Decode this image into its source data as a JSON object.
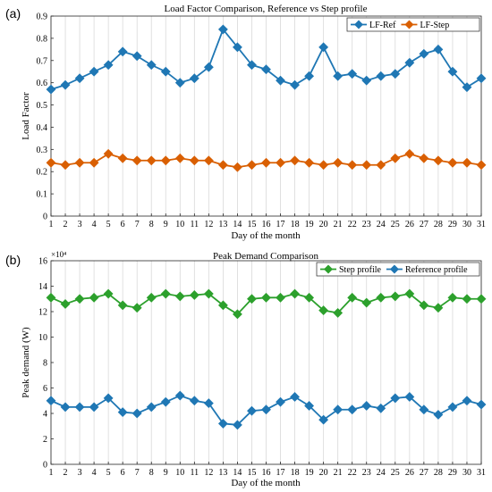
{
  "chart_data": [
    {
      "panel": "(a)",
      "type": "line",
      "title": "Load Factor Comparison, Reference vs Step profile",
      "xlabel": "Day of the month",
      "ylabel": "Load Factor",
      "xlim": [
        1,
        31
      ],
      "ylim": [
        0,
        0.9
      ],
      "yticks": [
        0,
        0.1,
        0.2,
        0.3,
        0.4,
        0.5,
        0.6,
        0.7,
        0.8,
        0.9
      ],
      "y_exponent": "",
      "grid": "vertical",
      "legend_position": "top-right",
      "x": [
        1,
        2,
        3,
        4,
        5,
        6,
        7,
        8,
        9,
        10,
        11,
        12,
        13,
        14,
        15,
        16,
        17,
        18,
        19,
        20,
        21,
        22,
        23,
        24,
        25,
        26,
        27,
        28,
        29,
        30,
        31
      ],
      "series": [
        {
          "name": "LF-Ref",
          "color": "#1f77b4",
          "marker": "diamond",
          "values": [
            0.57,
            0.59,
            0.62,
            0.65,
            0.68,
            0.74,
            0.72,
            0.68,
            0.65,
            0.6,
            0.62,
            0.67,
            0.84,
            0.76,
            0.68,
            0.66,
            0.61,
            0.59,
            0.63,
            0.76,
            0.63,
            0.64,
            0.61,
            0.63,
            0.64,
            0.69,
            0.73,
            0.75,
            0.65,
            0.58,
            0.62
          ]
        },
        {
          "name": "LF-Step",
          "color": "#d95f02",
          "marker": "diamond",
          "values": [
            0.24,
            0.23,
            0.24,
            0.24,
            0.28,
            0.26,
            0.25,
            0.25,
            0.25,
            0.26,
            0.25,
            0.25,
            0.23,
            0.22,
            0.23,
            0.24,
            0.24,
            0.25,
            0.24,
            0.23,
            0.24,
            0.23,
            0.23,
            0.23,
            0.26,
            0.28,
            0.26,
            0.25,
            0.24,
            0.24,
            0.23
          ]
        }
      ]
    },
    {
      "panel": "(b)",
      "type": "line",
      "title": "Peak Demand Comparison",
      "xlabel": "Day of the month",
      "ylabel": "Peak demand (W)",
      "xlim": [
        1,
        31
      ],
      "ylim": [
        0,
        160000
      ],
      "yticks": [
        0,
        2,
        4,
        6,
        8,
        10,
        12,
        14,
        16
      ],
      "y_exponent": "×10⁴",
      "grid": "vertical",
      "legend_position": "top-right",
      "x": [
        1,
        2,
        3,
        4,
        5,
        6,
        7,
        8,
        9,
        10,
        11,
        12,
        13,
        14,
        15,
        16,
        17,
        18,
        19,
        20,
        21,
        22,
        23,
        24,
        25,
        26,
        27,
        28,
        29,
        30,
        31
      ],
      "series": [
        {
          "name": "Step profile",
          "color": "#2ca02c",
          "marker": "diamond",
          "values": [
            131000,
            126000,
            130000,
            131000,
            134000,
            125000,
            123000,
            131000,
            134000,
            132000,
            133000,
            134000,
            125000,
            118000,
            130000,
            131000,
            131000,
            134000,
            131000,
            121000,
            119000,
            131000,
            127000,
            131000,
            132000,
            134000,
            125000,
            123000,
            131000,
            130000,
            130000
          ]
        },
        {
          "name": "Reference profile",
          "color": "#1f77b4",
          "marker": "diamond",
          "values": [
            50000,
            45000,
            45000,
            45000,
            52000,
            41000,
            40000,
            45000,
            49000,
            54000,
            50000,
            48000,
            32000,
            31000,
            42000,
            43000,
            49000,
            53000,
            46000,
            35000,
            43000,
            43000,
            46000,
            44000,
            52000,
            53000,
            43000,
            39000,
            45000,
            50000,
            47000
          ]
        }
      ]
    }
  ]
}
